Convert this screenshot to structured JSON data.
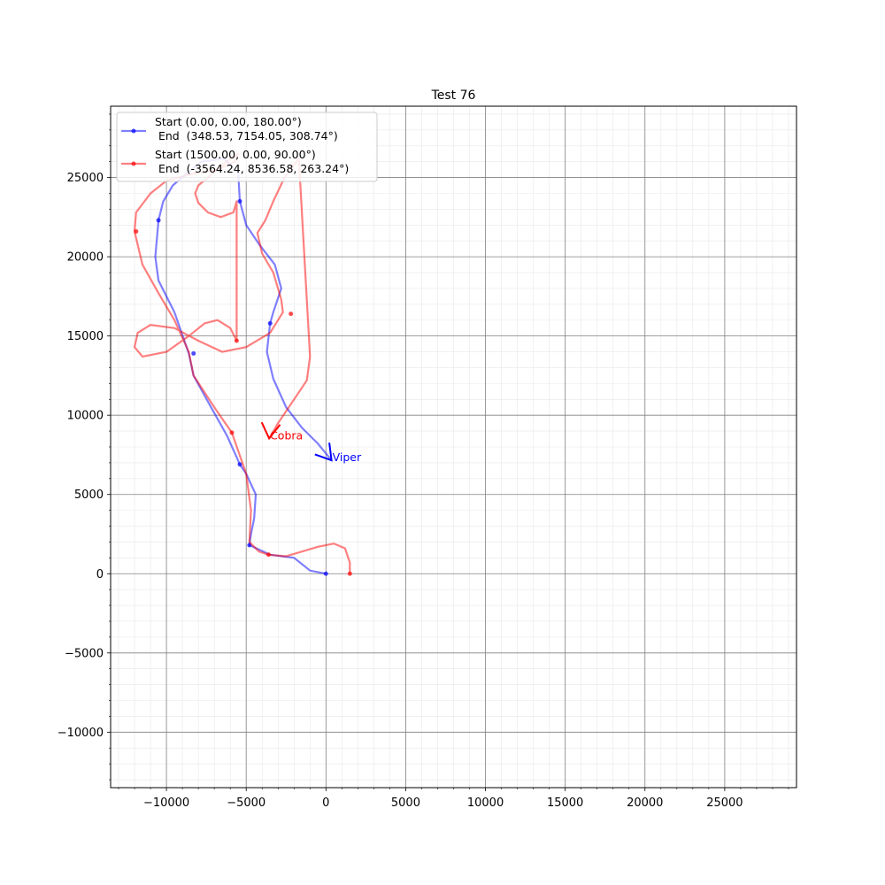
{
  "chart_data": {
    "type": "line",
    "title": "Test 76",
    "xlabel": "",
    "ylabel": "",
    "xlim": [
      -13500,
      29500
    ],
    "ylim": [
      -13500,
      29500
    ],
    "xticks": [
      -10000,
      -5000,
      0,
      5000,
      10000,
      15000,
      20000,
      25000
    ],
    "yticks": [
      -10000,
      -5000,
      0,
      5000,
      10000,
      15000,
      20000,
      25000
    ],
    "xtick_labels": [
      "−10000",
      "−5000",
      "0",
      "5000",
      "10000",
      "15000",
      "20000",
      "25000"
    ],
    "ytick_labels": [
      "−10000",
      "−5000",
      "0",
      "5000",
      "10000",
      "15000",
      "20000",
      "25000"
    ],
    "grid": true,
    "minor_grid": true,
    "legend_position": "upper-left",
    "series": [
      {
        "name": "Start (0.00, 0.00, 180.00°)\n End  (348.53, 7154.05, 308.74°)",
        "legend_line1": "Start (0.00, 0.00, 180.00°)",
        "legend_line2": " End  (348.53, 7154.05, 308.74°)",
        "color": "#0000ff",
        "label": "Viper",
        "x": [
          0,
          -1000,
          -2000,
          -3500,
          -4800,
          -4700,
          -4500,
          -4400,
          -5000,
          -5400,
          -6200,
          -7200,
          -8300,
          -8600,
          -9500,
          -10500,
          -10700,
          -10500,
          -10200,
          -9600,
          -8800,
          -7800,
          -6400,
          -5500,
          -5400,
          -5000,
          -4200,
          -3200,
          -2800,
          -3300,
          -3500,
          -3700,
          -3300,
          -2500,
          -1500,
          -500,
          348.53
        ],
        "y": [
          0,
          200,
          1000,
          1200,
          1800,
          2500,
          3500,
          5000,
          6300,
          6900,
          8700,
          10500,
          12500,
          13900,
          16500,
          18500,
          20000,
          22300,
          23500,
          24500,
          25200,
          26000,
          26200,
          25300,
          23500,
          22000,
          20800,
          19500,
          18000,
          16500,
          15800,
          14000,
          12300,
          10500,
          9200,
          8200,
          7154.05
        ],
        "markers_x": [
          0,
          -4800,
          -5400,
          -8300,
          -10500,
          -5400,
          -3500
        ],
        "markers_y": [
          0,
          1800,
          6900,
          13900,
          22300,
          23500,
          15800
        ],
        "end_heading_deg": 308.74
      },
      {
        "name": "Start (1500.00, 0.00, 90.00°)\n End  (-3564.24, 8536.58, 263.24°)",
        "legend_line1": "Start (1500.00, 0.00, 90.00°)",
        "legend_line2": " End  (-3564.24, 8536.58, 263.24°)",
        "color": "#ff0000",
        "label": "Cobra",
        "x": [
          1500,
          1500,
          1200,
          500,
          -500,
          -1500,
          -2500,
          -3600,
          -4200,
          -4800,
          -4700,
          -5000,
          -5900,
          -7000,
          -8300,
          -8600,
          -9500,
          -10500,
          -11500,
          -12000,
          -11900,
          -11000,
          -10000,
          -8500,
          -6800,
          -5700,
          -5500,
          -6000,
          -6700,
          -7400,
          -8000,
          -8200,
          -8000,
          -7400,
          -6600,
          -5800,
          -5600,
          -5600,
          -6000,
          -6800,
          -7600,
          -8600,
          -10000,
          -11500,
          -12000,
          -11800,
          -11000,
          -9500,
          -8000,
          -6500,
          -5000,
          -3500,
          -2700,
          -2800,
          -3300,
          -4000,
          -4300,
          -3800,
          -3300,
          -2600,
          -1700,
          -1000,
          -1200,
          -2000,
          -3000,
          -3564.24
        ],
        "y": [
          0,
          700,
          1600,
          1900,
          1700,
          1400,
          1100,
          1200,
          1400,
          2000,
          4000,
          6300,
          8900,
          10500,
          12500,
          14000,
          16000,
          17700,
          19500,
          21600,
          22800,
          24000,
          24800,
          25200,
          25500,
          26000,
          26500,
          26200,
          25600,
          25000,
          24500,
          24000,
          23400,
          22800,
          22500,
          22800,
          23500,
          14700,
          15500,
          16000,
          15800,
          15000,
          14000,
          13700,
          14300,
          15200,
          15700,
          15500,
          14700,
          14000,
          14300,
          15200,
          16500,
          17300,
          19000,
          20200,
          21500,
          22300,
          23500,
          25000,
          26200,
          13700,
          12200,
          11000,
          9500,
          8536.58
        ],
        "markers_x": [
          1500,
          -3600,
          -5900,
          -11900,
          -2200,
          -5600
        ],
        "markers_y": [
          0,
          1200,
          8900,
          21600,
          16400,
          14700
        ],
        "end_heading_deg": 263.24
      }
    ]
  }
}
